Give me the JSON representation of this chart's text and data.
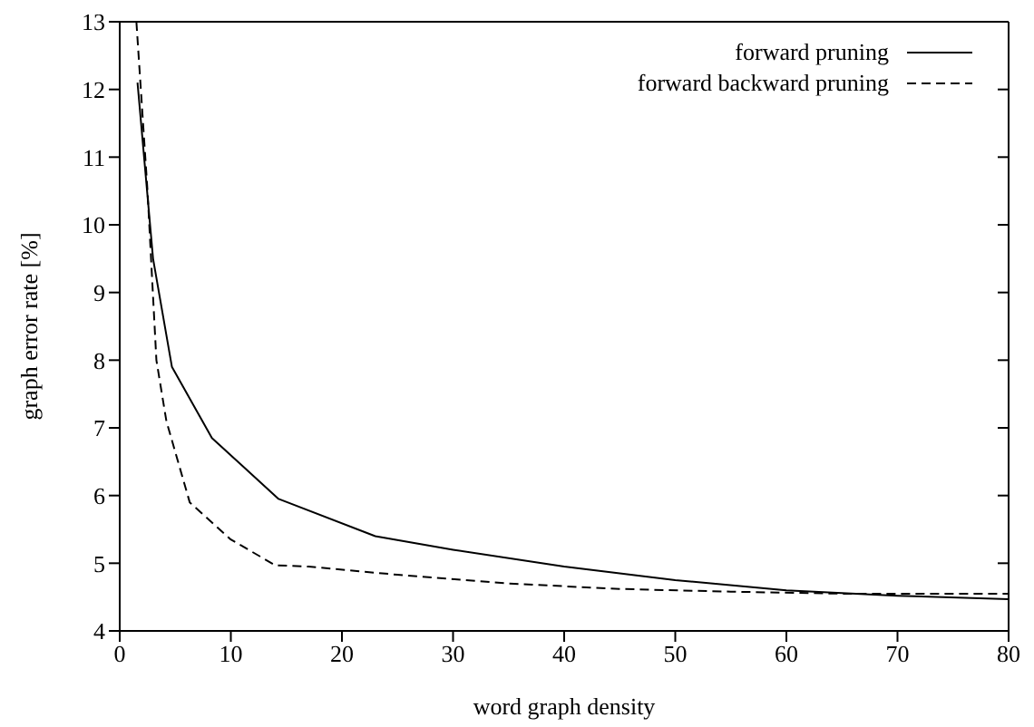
{
  "chart_data": {
    "type": "line",
    "xlabel": "word graph density",
    "ylabel": "graph error rate [%]",
    "xlim": [
      0,
      80
    ],
    "xticks": [
      0,
      10,
      20,
      30,
      40,
      50,
      60,
      70,
      80
    ],
    "ylim": [
      4,
      13
    ],
    "yticks": [
      4,
      5,
      6,
      7,
      8,
      9,
      10,
      11,
      12,
      13
    ],
    "grid": false,
    "legend": "top right",
    "marker": "none",
    "series": [
      {
        "name": "forward pruning",
        "color": "#000000",
        "line_style": "solid",
        "x": [
          1.6,
          3,
          4.7,
          8.3,
          14.3,
          23,
          30,
          40,
          50,
          60,
          70,
          80
        ],
        "values": [
          12.1,
          9.5,
          7.9,
          6.85,
          5.95,
          5.4,
          5.2,
          4.95,
          4.75,
          4.6,
          4.52,
          4.47
        ]
      },
      {
        "name": "forward backward pruning",
        "color": "#000000",
        "line_style": "dashed",
        "x": [
          1.5,
          2.5,
          3.3,
          4.2,
          6.3,
          10,
          14,
          17,
          25,
          35,
          45,
          55,
          65,
          80
        ],
        "values": [
          13,
          10.5,
          8.0,
          7.1,
          5.9,
          5.35,
          4.97,
          4.95,
          4.83,
          4.7,
          4.62,
          4.58,
          4.55,
          4.55
        ]
      }
    ]
  }
}
